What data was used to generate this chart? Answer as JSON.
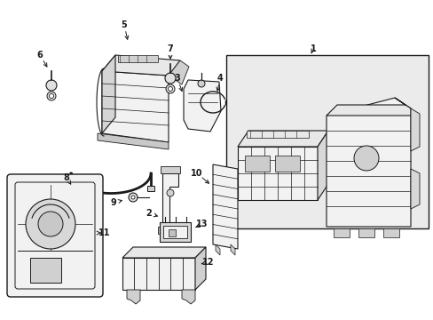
{
  "bg_color": "#ffffff",
  "line_color": "#1a1a1a",
  "gray_fill": "#e8e8e8",
  "light_gray": "#f2f2f2",
  "dot_fill": "#cccccc",
  "fig_width": 4.89,
  "fig_height": 3.6,
  "dpi": 100
}
